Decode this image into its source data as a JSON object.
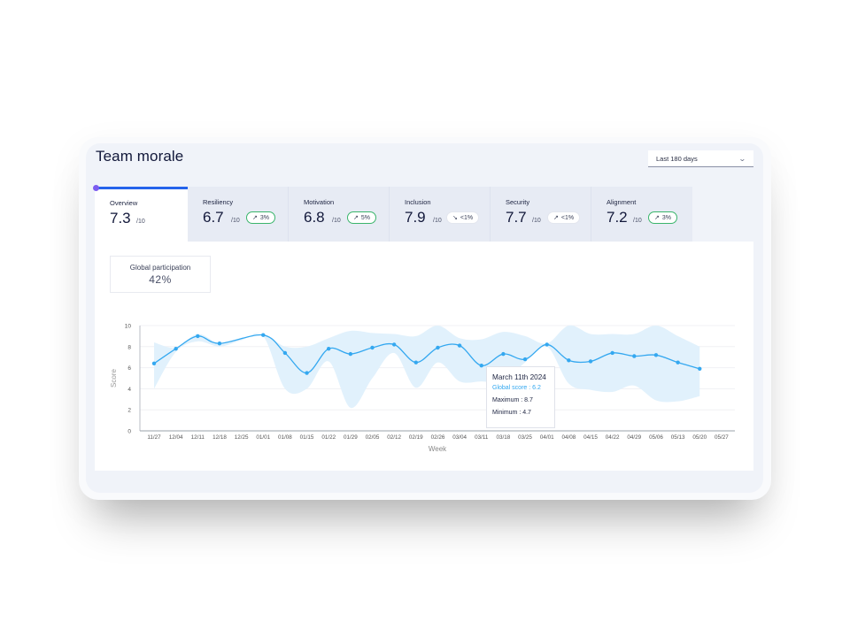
{
  "header": {
    "title": "Team morale",
    "period_select": {
      "value": "Last 180 days",
      "icon": "chevron-down-icon"
    }
  },
  "tabs": [
    {
      "label": "Overview",
      "value": "7.3",
      "out_of": "/10",
      "active": true
    },
    {
      "label": "Resiliency",
      "value": "6.7",
      "out_of": "/10",
      "trend": "up",
      "trend_icon": "arrow-up-right-icon",
      "change": "3%"
    },
    {
      "label": "Motivation",
      "value": "6.8",
      "out_of": "/10",
      "trend": "up",
      "trend_icon": "arrow-up-right-icon",
      "change": "5%"
    },
    {
      "label": "Inclusion",
      "value": "7.9",
      "out_of": "/10",
      "trend": "down",
      "trend_icon": "arrow-down-right-icon",
      "change": "<1%"
    },
    {
      "label": "Security",
      "value": "7.7",
      "out_of": "/10",
      "trend": "neutral-up",
      "trend_icon": "arrow-up-right-icon",
      "change": "<1%"
    },
    {
      "label": "Alignment",
      "value": "7.2",
      "out_of": "/10",
      "trend": "up",
      "trend_icon": "arrow-up-right-icon",
      "change": "3%"
    }
  ],
  "participation": {
    "label": "Global participation",
    "value": "42%"
  },
  "tooltip": {
    "date": "March 11th 2024",
    "score": "Global score : 6.2",
    "maximum": "Maximum : 8.7",
    "minimum": "Minimum : 4.7"
  },
  "colors": {
    "accent": "#2563eb",
    "line": "#34a8f0",
    "band": "#dff0fc",
    "badge_up_border": "#3ab56b",
    "tab_dot": "#7c5cf0"
  },
  "chart_data": {
    "type": "line",
    "title": "",
    "xlabel": "Week",
    "ylabel": "Score",
    "ylim": [
      0,
      10
    ],
    "yticks": [
      0,
      2,
      4,
      6,
      8,
      10
    ],
    "grid": true,
    "legend": "none",
    "categories": [
      "11/27",
      "12/04",
      "12/11",
      "12/18",
      "12/25",
      "01/01",
      "01/08",
      "01/15",
      "01/22",
      "01/29",
      "02/05",
      "02/12",
      "02/19",
      "02/26",
      "03/04",
      "03/11",
      "03/18",
      "03/25",
      "04/01",
      "04/08",
      "04/15",
      "04/22",
      "04/29",
      "05/06",
      "05/13",
      "05/20",
      "05/27"
    ],
    "series": [
      {
        "name": "Global score",
        "values": [
          6.4,
          7.8,
          9.0,
          8.3,
          null,
          9.1,
          7.4,
          5.5,
          7.8,
          7.3,
          7.9,
          8.2,
          6.5,
          7.9,
          8.1,
          6.2,
          7.3,
          6.8,
          8.2,
          6.7,
          6.6,
          7.4,
          7.1,
          7.2,
          6.5,
          5.9,
          null
        ]
      },
      {
        "name": "Maximum",
        "values": [
          8.4,
          7.9,
          9.2,
          8.3,
          8.8,
          9.2,
          8.0,
          8.0,
          8.8,
          9.5,
          9.3,
          9.2,
          9.0,
          10.0,
          8.8,
          8.7,
          9.4,
          9.0,
          8.3,
          10.0,
          9.2,
          9.2,
          9.2,
          10.0,
          9.0,
          8.0,
          null
        ]
      },
      {
        "name": "Minimum",
        "values": [
          4.0,
          7.5,
          8.5,
          8.0,
          8.6,
          9.0,
          4.0,
          4.0,
          6.6,
          2.2,
          5.0,
          7.4,
          4.1,
          6.5,
          4.7,
          4.7,
          4.7,
          6.5,
          8.0,
          4.5,
          3.9,
          3.7,
          4.3,
          2.9,
          2.8,
          3.3,
          null
        ]
      }
    ],
    "annotations": [
      {
        "x": "03/11",
        "text": "March 11th 2024 — Global score : 6.2, Maximum : 8.7, Minimum : 4.7"
      }
    ]
  }
}
